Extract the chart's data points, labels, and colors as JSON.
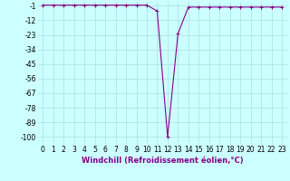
{
  "x": [
    0,
    1,
    2,
    3,
    4,
    5,
    6,
    7,
    8,
    9,
    10,
    11,
    12,
    13,
    14,
    15,
    16,
    17,
    18,
    19,
    20,
    21,
    22,
    23
  ],
  "y": [
    -0.5,
    -0.5,
    -0.5,
    -0.5,
    -0.5,
    -0.5,
    -0.5,
    -0.5,
    -0.5,
    -0.5,
    -0.5,
    -5,
    -100,
    -22,
    -2,
    -2,
    -2,
    -2,
    -2,
    -2,
    -2,
    -2,
    -2,
    -2
  ],
  "line_color": "#880088",
  "marker": "+",
  "marker_size": 3,
  "marker_lw": 0.7,
  "bg_color": "#ccffff",
  "grid_color": "#aadddd",
  "xlabel": "Windchill (Refroidissement éolien,°C)",
  "xlabel_fontsize": 6,
  "xlabel_color": "#880088",
  "ytick_labels": [
    "-1",
    "-12",
    "-23",
    "-34",
    "-45",
    "-56",
    "-67",
    "-78",
    "-89",
    "-100"
  ],
  "ytick_vals": [
    -1,
    -12,
    -23,
    -34,
    -45,
    -56,
    -67,
    -78,
    -89,
    -100
  ],
  "xtick_vals": [
    0,
    1,
    2,
    3,
    4,
    5,
    6,
    7,
    8,
    9,
    10,
    11,
    12,
    13,
    14,
    15,
    16,
    17,
    18,
    19,
    20,
    21,
    22,
    23
  ],
  "ylim": [
    -106,
    2
  ],
  "xlim": [
    -0.5,
    23.5
  ],
  "tick_fontsize": 5.5,
  "linewidth": 0.8
}
